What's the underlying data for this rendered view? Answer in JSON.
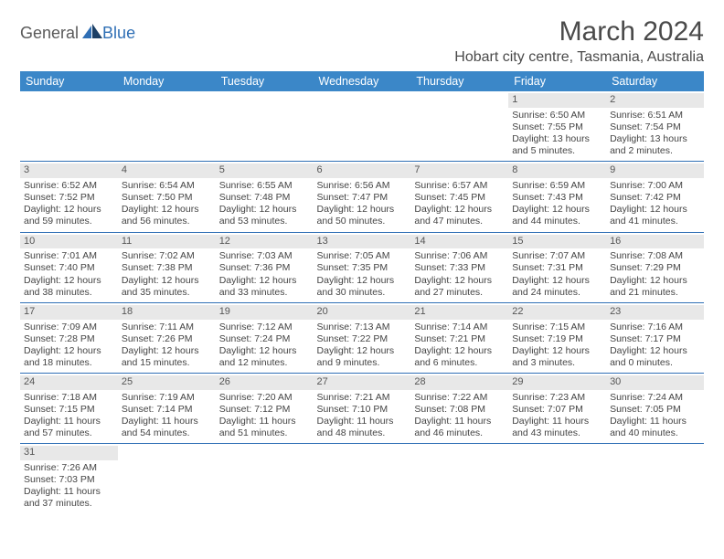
{
  "logo": {
    "part1": "Genera",
    "part2": "l",
    "part3": "Blue"
  },
  "title": "March 2024",
  "location": "Hobart city centre, Tasmania, Australia",
  "colors": {
    "header_bg": "#3b87c8",
    "header_fg": "#ffffff",
    "daynum_bg": "#e8e8e8",
    "row_divider": "#2f6fb5",
    "text": "#444444",
    "logo_blue": "#2f6fb5"
  },
  "typography": {
    "title_fontsize": 30,
    "location_fontsize": 16,
    "dayheader_fontsize": 12.5,
    "cell_fontsize": 10.5
  },
  "day_headers": [
    "Sunday",
    "Monday",
    "Tuesday",
    "Wednesday",
    "Thursday",
    "Friday",
    "Saturday"
  ],
  "weeks": [
    [
      {
        "empty": true
      },
      {
        "empty": true
      },
      {
        "empty": true
      },
      {
        "empty": true
      },
      {
        "empty": true
      },
      {
        "num": "1",
        "sunrise": "Sunrise: 6:50 AM",
        "sunset": "Sunset: 7:55 PM",
        "daylight": "Daylight: 13 hours and 5 minutes."
      },
      {
        "num": "2",
        "sunrise": "Sunrise: 6:51 AM",
        "sunset": "Sunset: 7:54 PM",
        "daylight": "Daylight: 13 hours and 2 minutes."
      }
    ],
    [
      {
        "num": "3",
        "sunrise": "Sunrise: 6:52 AM",
        "sunset": "Sunset: 7:52 PM",
        "daylight": "Daylight: 12 hours and 59 minutes."
      },
      {
        "num": "4",
        "sunrise": "Sunrise: 6:54 AM",
        "sunset": "Sunset: 7:50 PM",
        "daylight": "Daylight: 12 hours and 56 minutes."
      },
      {
        "num": "5",
        "sunrise": "Sunrise: 6:55 AM",
        "sunset": "Sunset: 7:48 PM",
        "daylight": "Daylight: 12 hours and 53 minutes."
      },
      {
        "num": "6",
        "sunrise": "Sunrise: 6:56 AM",
        "sunset": "Sunset: 7:47 PM",
        "daylight": "Daylight: 12 hours and 50 minutes."
      },
      {
        "num": "7",
        "sunrise": "Sunrise: 6:57 AM",
        "sunset": "Sunset: 7:45 PM",
        "daylight": "Daylight: 12 hours and 47 minutes."
      },
      {
        "num": "8",
        "sunrise": "Sunrise: 6:59 AM",
        "sunset": "Sunset: 7:43 PM",
        "daylight": "Daylight: 12 hours and 44 minutes."
      },
      {
        "num": "9",
        "sunrise": "Sunrise: 7:00 AM",
        "sunset": "Sunset: 7:42 PM",
        "daylight": "Daylight: 12 hours and 41 minutes."
      }
    ],
    [
      {
        "num": "10",
        "sunrise": "Sunrise: 7:01 AM",
        "sunset": "Sunset: 7:40 PM",
        "daylight": "Daylight: 12 hours and 38 minutes."
      },
      {
        "num": "11",
        "sunrise": "Sunrise: 7:02 AM",
        "sunset": "Sunset: 7:38 PM",
        "daylight": "Daylight: 12 hours and 35 minutes."
      },
      {
        "num": "12",
        "sunrise": "Sunrise: 7:03 AM",
        "sunset": "Sunset: 7:36 PM",
        "daylight": "Daylight: 12 hours and 33 minutes."
      },
      {
        "num": "13",
        "sunrise": "Sunrise: 7:05 AM",
        "sunset": "Sunset: 7:35 PM",
        "daylight": "Daylight: 12 hours and 30 minutes."
      },
      {
        "num": "14",
        "sunrise": "Sunrise: 7:06 AM",
        "sunset": "Sunset: 7:33 PM",
        "daylight": "Daylight: 12 hours and 27 minutes."
      },
      {
        "num": "15",
        "sunrise": "Sunrise: 7:07 AM",
        "sunset": "Sunset: 7:31 PM",
        "daylight": "Daylight: 12 hours and 24 minutes."
      },
      {
        "num": "16",
        "sunrise": "Sunrise: 7:08 AM",
        "sunset": "Sunset: 7:29 PM",
        "daylight": "Daylight: 12 hours and 21 minutes."
      }
    ],
    [
      {
        "num": "17",
        "sunrise": "Sunrise: 7:09 AM",
        "sunset": "Sunset: 7:28 PM",
        "daylight": "Daylight: 12 hours and 18 minutes."
      },
      {
        "num": "18",
        "sunrise": "Sunrise: 7:11 AM",
        "sunset": "Sunset: 7:26 PM",
        "daylight": "Daylight: 12 hours and 15 minutes."
      },
      {
        "num": "19",
        "sunrise": "Sunrise: 7:12 AM",
        "sunset": "Sunset: 7:24 PM",
        "daylight": "Daylight: 12 hours and 12 minutes."
      },
      {
        "num": "20",
        "sunrise": "Sunrise: 7:13 AM",
        "sunset": "Sunset: 7:22 PM",
        "daylight": "Daylight: 12 hours and 9 minutes."
      },
      {
        "num": "21",
        "sunrise": "Sunrise: 7:14 AM",
        "sunset": "Sunset: 7:21 PM",
        "daylight": "Daylight: 12 hours and 6 minutes."
      },
      {
        "num": "22",
        "sunrise": "Sunrise: 7:15 AM",
        "sunset": "Sunset: 7:19 PM",
        "daylight": "Daylight: 12 hours and 3 minutes."
      },
      {
        "num": "23",
        "sunrise": "Sunrise: 7:16 AM",
        "sunset": "Sunset: 7:17 PM",
        "daylight": "Daylight: 12 hours and 0 minutes."
      }
    ],
    [
      {
        "num": "24",
        "sunrise": "Sunrise: 7:18 AM",
        "sunset": "Sunset: 7:15 PM",
        "daylight": "Daylight: 11 hours and 57 minutes."
      },
      {
        "num": "25",
        "sunrise": "Sunrise: 7:19 AM",
        "sunset": "Sunset: 7:14 PM",
        "daylight": "Daylight: 11 hours and 54 minutes."
      },
      {
        "num": "26",
        "sunrise": "Sunrise: 7:20 AM",
        "sunset": "Sunset: 7:12 PM",
        "daylight": "Daylight: 11 hours and 51 minutes."
      },
      {
        "num": "27",
        "sunrise": "Sunrise: 7:21 AM",
        "sunset": "Sunset: 7:10 PM",
        "daylight": "Daylight: 11 hours and 48 minutes."
      },
      {
        "num": "28",
        "sunrise": "Sunrise: 7:22 AM",
        "sunset": "Sunset: 7:08 PM",
        "daylight": "Daylight: 11 hours and 46 minutes."
      },
      {
        "num": "29",
        "sunrise": "Sunrise: 7:23 AM",
        "sunset": "Sunset: 7:07 PM",
        "daylight": "Daylight: 11 hours and 43 minutes."
      },
      {
        "num": "30",
        "sunrise": "Sunrise: 7:24 AM",
        "sunset": "Sunset: 7:05 PM",
        "daylight": "Daylight: 11 hours and 40 minutes."
      }
    ],
    [
      {
        "num": "31",
        "sunrise": "Sunrise: 7:26 AM",
        "sunset": "Sunset: 7:03 PM",
        "daylight": "Daylight: 11 hours and 37 minutes."
      },
      {
        "empty": true
      },
      {
        "empty": true
      },
      {
        "empty": true
      },
      {
        "empty": true
      },
      {
        "empty": true
      },
      {
        "empty": true
      }
    ]
  ]
}
